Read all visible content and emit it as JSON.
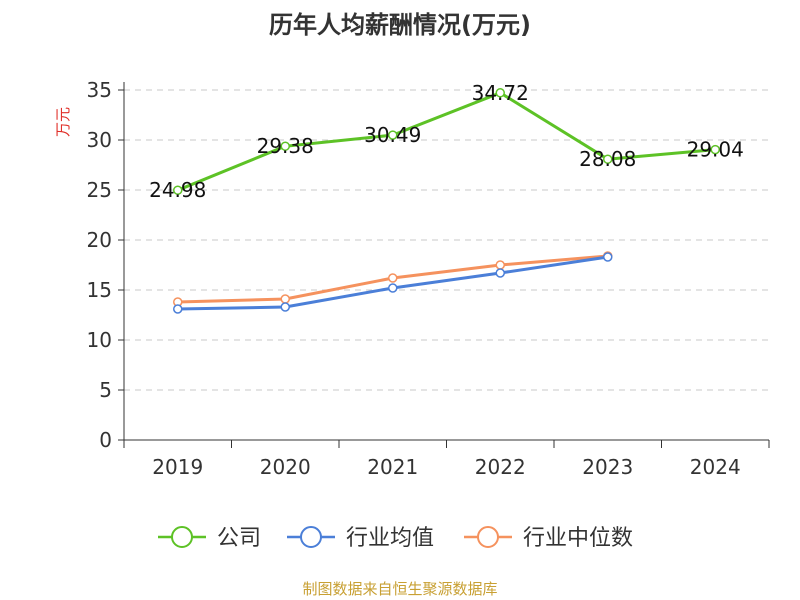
{
  "chart_data": {
    "type": "line",
    "title": "历年人均薪酬情况(万元)",
    "ylabel": "万元",
    "xlabel": "",
    "categories": [
      "2019",
      "2020",
      "2021",
      "2022",
      "2023",
      "2024"
    ],
    "ylim": [
      0,
      35
    ],
    "yticks": [
      0,
      5,
      10,
      15,
      20,
      25,
      30,
      35
    ],
    "grid": true,
    "legend_position": "bottom",
    "series": [
      {
        "name": "公司",
        "color": "#5dc226",
        "values": [
          24.98,
          29.38,
          30.49,
          34.72,
          28.08,
          29.04
        ],
        "labels": [
          "24.98",
          "29.38",
          "30.49",
          "34.72",
          "28.08",
          "29.04"
        ]
      },
      {
        "name": "行业均值",
        "color": "#4b7fd8",
        "values": [
          13.1,
          13.3,
          15.2,
          16.7,
          18.3,
          null
        ]
      },
      {
        "name": "行业中位数",
        "color": "#f5925e",
        "values": [
          13.8,
          14.1,
          16.2,
          17.5,
          18.4,
          null
        ]
      }
    ]
  },
  "source": "制图数据来自恒生聚源数据库"
}
